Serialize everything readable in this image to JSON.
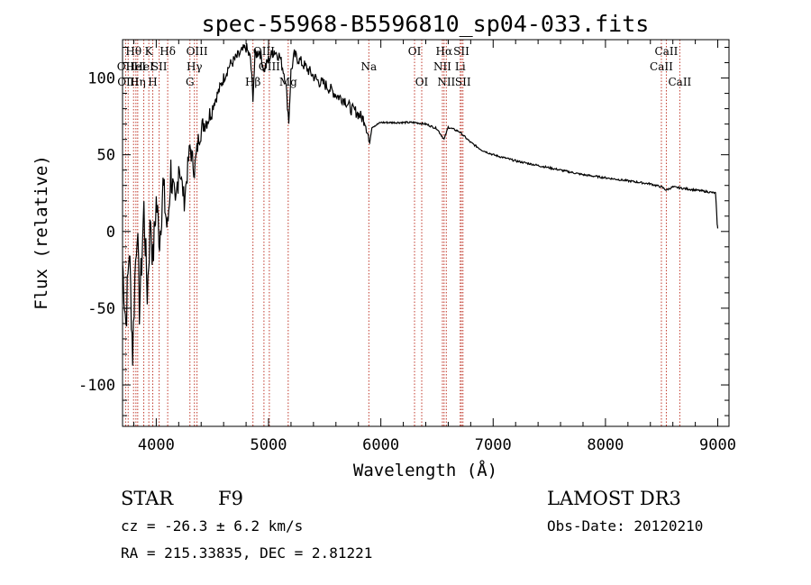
{
  "chart_data": {
    "type": "line",
    "title": "spec-55968-B5596810_sp04-033.fits",
    "xlabel": "Wavelength (Å)",
    "ylabel": "Flux (relative)",
    "xlim": [
      3700,
      9100
    ],
    "ylim": [
      -127,
      125
    ],
    "x_ticks": [
      "4000",
      "5000",
      "6000",
      "7000",
      "8000",
      "9000"
    ],
    "y_ticks": [
      "-100",
      "-50",
      "0",
      "50",
      "100"
    ],
    "x_tick_values": [
      4000,
      5000,
      6000,
      7000,
      8000,
      9000
    ],
    "y_tick_values": [
      -100,
      -50,
      0,
      50,
      100
    ],
    "grid": false,
    "series": [
      {
        "x": [
          3700,
          3730,
          3760,
          3790,
          3810,
          3830,
          3850,
          3870,
          3890,
          3920,
          3950,
          3970,
          4000,
          4030,
          4060,
          4100,
          4130,
          4170,
          4200,
          4250,
          4300,
          4340,
          4380,
          4420,
          4470,
          4520,
          4560,
          4600,
          4650,
          4700,
          4750,
          4800,
          4840,
          4861,
          4880,
          4920,
          4960,
          5000,
          5050,
          5100,
          5150,
          5180,
          5200,
          5230,
          5270,
          5320,
          5380,
          5440,
          5500,
          5560,
          5620,
          5680,
          5730,
          5780,
          5820,
          5860,
          5890,
          5895,
          5920,
          6000,
          6100,
          6200,
          6300,
          6400,
          6500,
          6563,
          6600,
          6700,
          6800,
          6900,
          7000,
          7200,
          7400,
          7600,
          7800,
          8000,
          8200,
          8400,
          8500,
          8542,
          8600,
          8700,
          8800,
          8900,
          8980,
          8995,
          9000
        ],
        "y": [
          -20,
          -60,
          -10,
          -80,
          -30,
          5,
          -50,
          -20,
          15,
          -40,
          10,
          -20,
          20,
          -5,
          30,
          0,
          40,
          10,
          45,
          20,
          55,
          40,
          62,
          70,
          75,
          85,
          92,
          100,
          108,
          112,
          116,
          120,
          112,
          88,
          115,
          118,
          105,
          112,
          118,
          114,
          100,
          72,
          104,
          115,
          112,
          108,
          103,
          98,
          96,
          92,
          88,
          86,
          80,
          78,
          75,
          72,
          62,
          55,
          68,
          71,
          71,
          71,
          71,
          70,
          67,
          60,
          68,
          65,
          58,
          53,
          50,
          46,
          43,
          40,
          37,
          35,
          33,
          31,
          29,
          27,
          29,
          28,
          27,
          26,
          25,
          5,
          2
        ]
      }
    ],
    "lines": [
      {
        "wl": 3727,
        "label": "OII",
        "row": 2
      },
      {
        "wl": 3750,
        "label": "OIII",
        "row": 3
      },
      {
        "wl": 3798,
        "label": "Hθ",
        "row": 1
      },
      {
        "wl": 3819,
        "label": "HeI",
        "row": 2
      },
      {
        "wl": 3835,
        "label": "Hη",
        "row": 3
      },
      {
        "wl": 3889,
        "label": "HeI",
        "row": 2
      },
      {
        "wl": 3934,
        "label": "K",
        "row": 1
      },
      {
        "wl": 3969,
        "label": "H",
        "row": 3
      },
      {
        "wl": 4026,
        "label": "SII",
        "row": 2
      },
      {
        "wl": 4102,
        "label": "Hδ",
        "row": 1
      },
      {
        "wl": 4300,
        "label": "G",
        "row": 3
      },
      {
        "wl": 4340,
        "label": "Hγ",
        "row": 2
      },
      {
        "wl": 4363,
        "label": "OIII",
        "row": 1
      },
      {
        "wl": 4861,
        "label": "Hβ",
        "row": 3
      },
      {
        "wl": 4959,
        "label": "OIII",
        "row": 1
      },
      {
        "wl": 5007,
        "label": "OIII",
        "row": 2
      },
      {
        "wl": 5175,
        "label": "Mg",
        "row": 3
      },
      {
        "wl": 5893,
        "label": "Na",
        "row": 2
      },
      {
        "wl": 6300,
        "label": "OI",
        "row": 1
      },
      {
        "wl": 6364,
        "label": "OI",
        "row": 3
      },
      {
        "wl": 6548,
        "label": "NII",
        "row": 2
      },
      {
        "wl": 6563,
        "label": "Hα",
        "row": 1
      },
      {
        "wl": 6583,
        "label": "NII",
        "row": 3
      },
      {
        "wl": 6707,
        "label": "Li",
        "row": 2
      },
      {
        "wl": 6717,
        "label": "SII",
        "row": 1
      },
      {
        "wl": 6731,
        "label": "SII",
        "row": 3
      },
      {
        "wl": 8498,
        "label": "CaII",
        "row": 2
      },
      {
        "wl": 8542,
        "label": "CaII",
        "row": 1
      },
      {
        "wl": 8662,
        "label": "CaII",
        "row": 3
      }
    ]
  },
  "info": {
    "object_class": "STAR",
    "subclass": "F9",
    "survey": "LAMOST DR3",
    "cz": "cz = -26.3 ± 6.2 km/s",
    "obs_date": "Obs-Date: 20120210",
    "coords": "RA = 215.33835, DEC =   2.81221"
  }
}
